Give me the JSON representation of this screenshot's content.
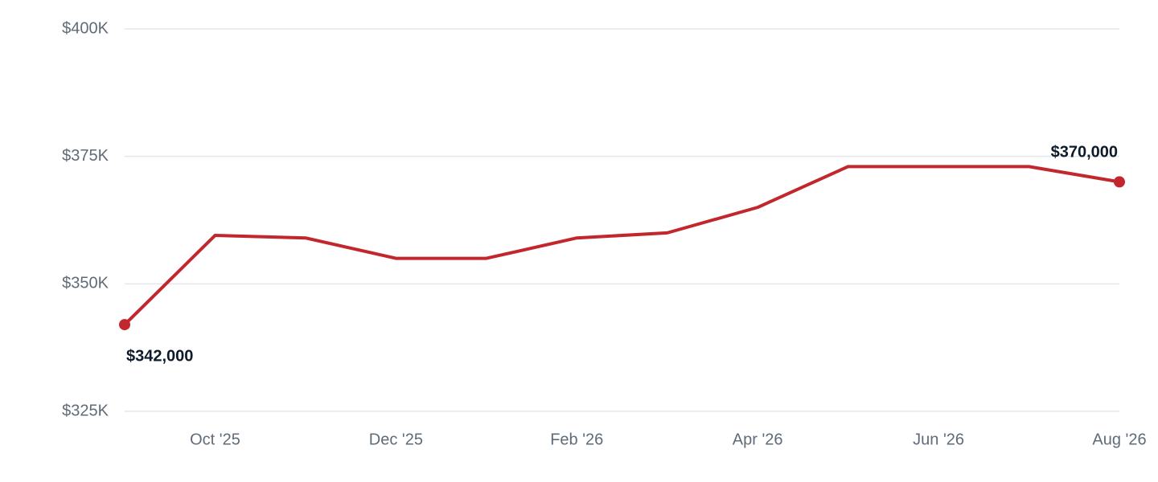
{
  "chart_data": {
    "type": "line",
    "categories": [
      null,
      "Oct '25",
      null,
      "Dec '25",
      null,
      "Feb '26",
      null,
      "Apr '26",
      null,
      "Jun '26",
      null,
      "Aug '26"
    ],
    "values": [
      342000,
      359500,
      359000,
      355000,
      355000,
      359000,
      360000,
      365000,
      373000,
      373000,
      373000,
      370000
    ],
    "value_labels": [
      "$342,000",
      null,
      null,
      null,
      null,
      null,
      null,
      null,
      null,
      null,
      null,
      "$370,000"
    ],
    "color": "#c1272d",
    "ylim": [
      325000,
      400000
    ],
    "yticks": [
      {
        "value": 325000,
        "label": "$325K"
      },
      {
        "value": 350000,
        "label": "$350K"
      },
      {
        "value": 375000,
        "label": "$375K"
      },
      {
        "value": 400000,
        "label": "$400K"
      }
    ],
    "grid": true
  }
}
